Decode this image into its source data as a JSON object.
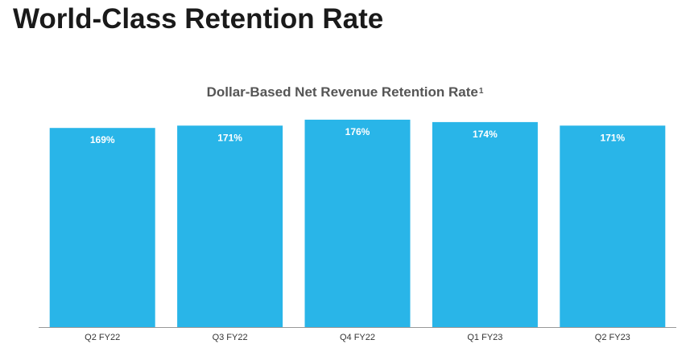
{
  "page": {
    "title": "World-Class Retention Rate"
  },
  "chart_data": {
    "type": "bar",
    "title": "Dollar-Based Net Revenue Retention Rate",
    "title_footnote": "1",
    "categories": [
      "Q2 FY22",
      "Q3 FY22",
      "Q4 FY22",
      "Q1 FY23",
      "Q2 FY23"
    ],
    "values": [
      169,
      171,
      176,
      174,
      171
    ],
    "value_labels": [
      "169%",
      "171%",
      "176%",
      "174%",
      "171%"
    ],
    "value_unit": "%",
    "bar_color": "#29B5E8",
    "axis_color": "#999999",
    "ylim": [
      0,
      178
    ],
    "grid": false,
    "legend": "none"
  }
}
